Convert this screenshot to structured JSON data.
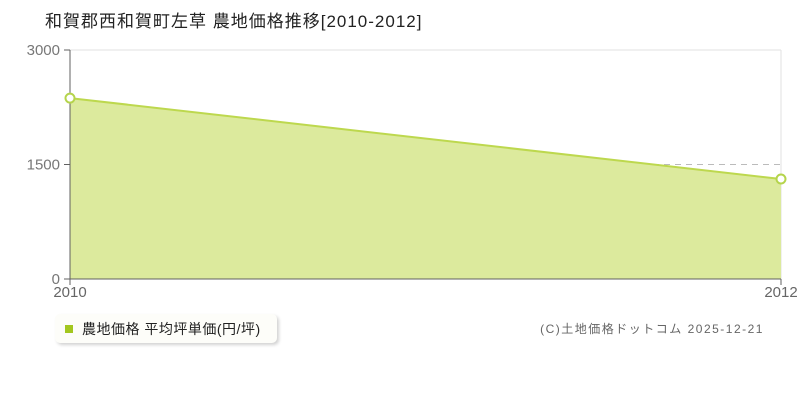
{
  "title": "和賀郡西和賀町左草 農地価格推移[2010-2012]",
  "legend": {
    "label": "農地価格 平均坪単価(円/坪)"
  },
  "copyright": "(C)土地価格ドットコム 2025-12-21",
  "chart_data": {
    "type": "area",
    "title": "和賀郡西和賀町左草 農地価格推移[2010-2012]",
    "series": [
      {
        "name": "農地価格 平均坪単価(円/坪)",
        "x": [
          2010,
          2012
        ],
        "values": [
          2370,
          1310
        ]
      }
    ],
    "xlabel": "",
    "ylabel": "平均坪単価(円/坪)",
    "xlim": [
      2010,
      2012
    ],
    "ylim": [
      0,
      3000
    ],
    "x_ticks": [
      2010,
      2012
    ],
    "y_ticks": [
      0,
      1500,
      3000
    ],
    "grid": "horizontal dashed line at 1500, solid light top and right plot borders",
    "legend_position": "bottom-left",
    "markers": "open circles at series endpoints",
    "colors": {
      "area_fill": "#dcea9d",
      "line": "#bdd84e",
      "marker_fill": "#ffffff",
      "marker_stroke": "#b5d44c",
      "legend_swatch": "#a3c71f",
      "axis": "#606060",
      "tick_label": "#777777",
      "grid_dashed": "#bbbbbb",
      "plot_border": "#e2e2e2",
      "title_text": "#222222"
    }
  }
}
